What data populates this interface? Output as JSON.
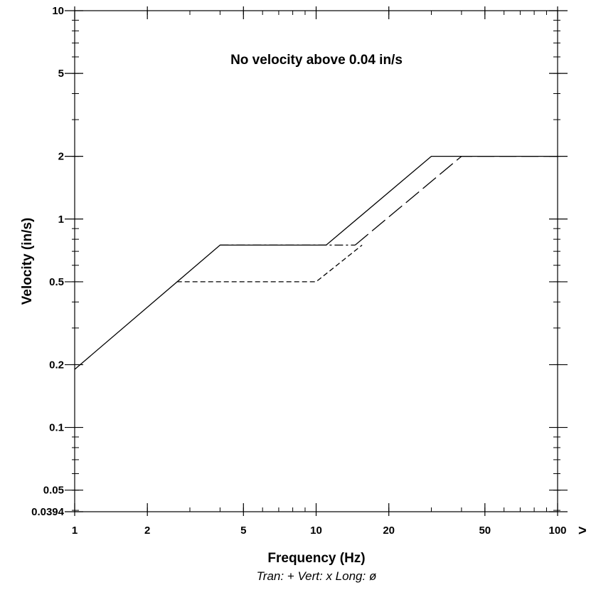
{
  "chart_data": {
    "type": "line",
    "xscale": "log",
    "yscale": "log",
    "xlim": [
      1,
      100
    ],
    "ylim": [
      0.0394,
      10
    ],
    "xlabel": "Frequency (Hz)",
    "ylabel": "Velocity (in/s)",
    "x_ticks": [
      1,
      2,
      5,
      10,
      20,
      50,
      100
    ],
    "x_tick_labels": [
      "1",
      "2",
      "5",
      "10",
      "20",
      "50",
      "100"
    ],
    "y_ticks": [
      0.0394,
      0.05,
      0.1,
      0.2,
      0.5,
      1,
      2,
      5,
      10
    ],
    "y_tick_labels": [
      "0.0394",
      "0.05",
      "0.1",
      "0.2",
      "0.5",
      "1",
      "2",
      "5",
      "10"
    ],
    "annotation": "No velocity above 0.04 in/s",
    "legend_text": "Tran: +  Vert: x  Long: ø",
    "overflow_marker": ">",
    "grid": false,
    "series": [
      {
        "style": "solid",
        "x": [
          1,
          4,
          11,
          30,
          100
        ],
        "y": [
          0.19,
          0.75,
          0.75,
          2,
          2
        ]
      },
      {
        "style": "dash-dot",
        "x": [
          4,
          14.5
        ],
        "y": [
          0.75,
          0.75
        ]
      },
      {
        "style": "dashed",
        "x": [
          2.65,
          10,
          15.5
        ],
        "y": [
          0.5,
          0.5,
          0.75
        ]
      },
      {
        "style": "long-dash",
        "x": [
          14.5,
          40,
          100
        ],
        "y": [
          0.75,
          2,
          2
        ]
      }
    ]
  }
}
